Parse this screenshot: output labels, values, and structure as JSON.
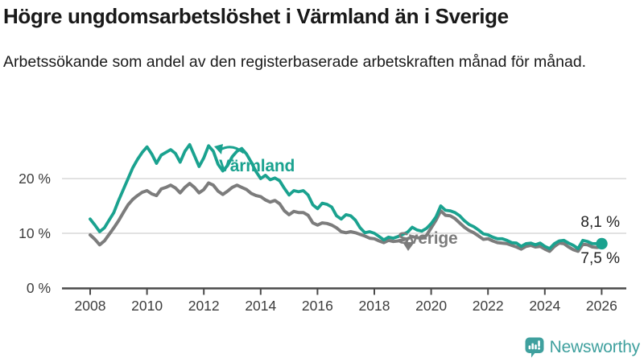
{
  "header": {
    "title": "Högre ungdomsarbetslöshet i Värmland än i Sverige",
    "subtitle": "Arbetssökande som andel av den registerbaserade arbetskraften månad för månad."
  },
  "chart_data": {
    "type": "line",
    "title": "Högre ungdomsarbetslöshet i Värmland än i Sverige",
    "xlabel": "",
    "ylabel": "",
    "x_unit": "year (monthly data)",
    "y_unit": "percent of registered labour force",
    "x_start": 2008,
    "x_step": 0.1667,
    "x_range": [
      2007.7,
      2026.9
    ],
    "ylim": [
      0,
      28
    ],
    "grid": "horizontal",
    "grid_color": "#d8d8d8",
    "axis_color": "#4a4a4a",
    "x_ticks": [
      "2008",
      "2010",
      "2012",
      "2014",
      "2016",
      "2018",
      "2020",
      "2022",
      "2024",
      "2026"
    ],
    "x_tick_values": [
      2008,
      2010,
      2012,
      2014,
      2016,
      2018,
      2020,
      2022,
      2024,
      2026
    ],
    "y_ticks": [
      {
        "value": 0,
        "label": "0 %"
      },
      {
        "value": 10,
        "label": "10 %"
      },
      {
        "value": 20,
        "label": "20 %"
      }
    ],
    "legend_position": "inline-annotations",
    "series": [
      {
        "id": "varmland",
        "name": "Värmland",
        "color": "#1aa28f",
        "width": 3.8,
        "end_label": "8,1 %",
        "end_value": 8.1,
        "values": [
          12.6,
          11.5,
          10.3,
          11.0,
          12.4,
          13.8,
          16.0,
          18.0,
          20.0,
          22.0,
          23.5,
          24.8,
          25.8,
          24.5,
          22.8,
          24.3,
          24.8,
          25.3,
          24.6,
          23.0,
          25.0,
          26.2,
          24.2,
          22.2,
          23.8,
          26.0,
          25.0,
          22.6,
          21.4,
          22.4,
          24.0,
          25.0,
          25.5,
          24.5,
          23.0,
          21.3,
          20.0,
          20.6,
          19.8,
          20.1,
          19.6,
          18.2,
          17.0,
          17.8,
          17.6,
          17.8,
          17.0,
          15.2,
          14.5,
          15.5,
          15.3,
          14.8,
          13.2,
          12.6,
          13.4,
          13.2,
          12.4,
          11.0,
          10.1,
          10.3,
          10.0,
          9.4,
          8.8,
          9.3,
          9.1,
          9.4,
          9.8,
          10.2,
          11.1,
          10.6,
          10.4,
          10.9,
          11.8,
          13.0,
          15.0,
          14.2,
          14.1,
          13.8,
          13.2,
          12.3,
          11.6,
          11.2,
          10.6,
          9.9,
          9.7,
          9.3,
          9.0,
          9.0,
          8.7,
          8.3,
          8.2,
          7.6,
          8.1,
          8.2,
          7.9,
          8.2,
          7.6,
          7.2,
          8.1,
          8.6,
          8.7,
          8.2,
          7.8,
          7.2,
          8.7,
          8.5,
          8.1,
          8.1,
          8.1
        ]
      },
      {
        "id": "sverige",
        "name": "Sverige",
        "color": "#7c7c7c",
        "width": 4,
        "end_label": "7,5 %",
        "end_value": 7.5,
        "values": [
          9.7,
          8.9,
          7.9,
          8.6,
          9.8,
          11.0,
          12.3,
          13.8,
          15.2,
          16.2,
          16.9,
          17.5,
          17.8,
          17.2,
          16.9,
          18.1,
          18.4,
          18.8,
          18.3,
          17.4,
          18.4,
          19.1,
          18.4,
          17.4,
          18.0,
          19.2,
          18.8,
          17.7,
          17.1,
          17.7,
          18.4,
          18.8,
          18.4,
          18.0,
          17.3,
          16.9,
          16.7,
          16.1,
          15.7,
          16.0,
          15.4,
          14.1,
          13.4,
          14.0,
          13.8,
          13.8,
          13.3,
          11.9,
          11.5,
          11.9,
          11.8,
          11.5,
          11.0,
          10.3,
          10.1,
          10.3,
          10.1,
          9.8,
          9.5,
          9.1,
          9.0,
          8.6,
          8.3,
          8.7,
          8.5,
          8.6,
          8.8,
          9.0,
          9.4,
          9.2,
          9.1,
          9.6,
          11.0,
          12.4,
          14.1,
          13.3,
          13.2,
          12.7,
          11.9,
          11.1,
          10.5,
          10.1,
          9.5,
          8.9,
          9.0,
          8.6,
          8.3,
          8.2,
          8.1,
          7.8,
          7.5,
          7.1,
          7.6,
          7.8,
          7.5,
          7.6,
          7.1,
          6.7,
          7.6,
          8.2,
          8.1,
          7.5,
          7.0,
          6.7,
          8.0,
          7.9,
          7.5,
          7.4,
          7.5
        ]
      }
    ]
  },
  "footer": {
    "brand": "Newsworthy",
    "brand_color": "#3fa09e"
  }
}
